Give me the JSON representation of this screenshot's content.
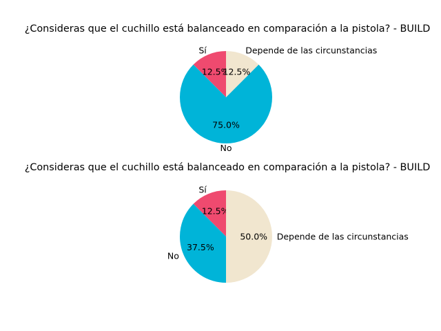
{
  "chart_data": [
    {
      "type": "pie",
      "title": "¿Consideras que el cuchillo está balanceado en comparación a la pistola? - BUILD",
      "categories": [
        "Sí",
        "No",
        "Depende de las circunstancias"
      ],
      "values": [
        12.5,
        75.0,
        12.5
      ],
      "value_labels": [
        "12.5%",
        "75.0%",
        "12.5%"
      ],
      "colors": [
        "#ef4a6f",
        "#00b4d8",
        "#f1e6cf"
      ]
    },
    {
      "type": "pie",
      "title": "¿Consideras que el cuchillo está balanceado en comparación a la pistola? - BUILD",
      "categories": [
        "Sí",
        "No",
        "Depende de las circunstancias"
      ],
      "values": [
        12.5,
        37.5,
        50.0
      ],
      "value_labels": [
        "12.5%",
        "37.5%",
        "50.0%"
      ],
      "colors": [
        "#ef4a6f",
        "#00b4d8",
        "#f1e6cf"
      ]
    }
  ]
}
